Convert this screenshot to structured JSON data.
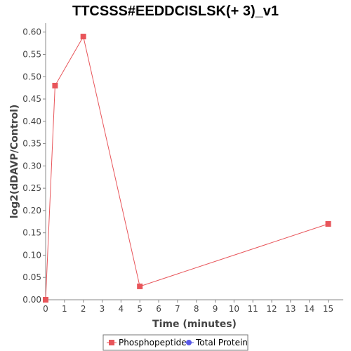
{
  "chart_data": {
    "type": "line",
    "title": "TTCSSS#EEDDCISLSK(+ 3)_v1",
    "xlabel": "Time (minutes)",
    "ylabel": "log2(dDAVP/Control)",
    "xlim": [
      0,
      15.8
    ],
    "ylim": [
      0,
      0.62
    ],
    "xticks": [
      0,
      1,
      2,
      3,
      4,
      5,
      6,
      7,
      8,
      9,
      10,
      11,
      12,
      13,
      14,
      15
    ],
    "yticks": [
      "0.00",
      "0.05",
      "0.10",
      "0.15",
      "0.20",
      "0.25",
      "0.30",
      "0.35",
      "0.40",
      "0.45",
      "0.50",
      "0.55",
      "0.60"
    ],
    "grid": false,
    "legend_position": "bottom-center",
    "series": [
      {
        "name": "Phosphopeptide",
        "color": "#e8555a",
        "marker": "square",
        "x": [
          0,
          0.5,
          2,
          5,
          15
        ],
        "y": [
          0.0,
          0.48,
          0.59,
          0.03,
          0.17
        ]
      }
    ],
    "legend": [
      {
        "name": "Phosphopeptide",
        "color": "#e8555a",
        "marker": "square"
      },
      {
        "name": "Total Protein",
        "color": "#5a5ae8",
        "marker": "circle"
      }
    ]
  }
}
